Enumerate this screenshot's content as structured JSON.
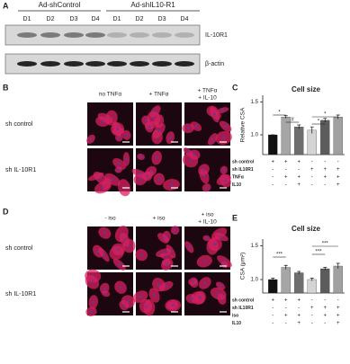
{
  "panel_a": {
    "label": "A",
    "groups": [
      "Ad-shControl",
      "Ad-shIL10-R1"
    ],
    "lanes": [
      "D1",
      "D2",
      "D3",
      "D4",
      "D1",
      "D2",
      "D3",
      "D4"
    ],
    "blots": [
      "IL-10R1",
      "β-actin"
    ]
  },
  "panel_b": {
    "label": "B",
    "columns": [
      [
        "no TNFα"
      ],
      [
        "+ TNFα"
      ],
      [
        "+ TNFα",
        "+ IL-10"
      ]
    ],
    "rows": [
      "sh control",
      "sh IL-10R1"
    ]
  },
  "panel_d": {
    "label": "D",
    "columns": [
      [
        "- iso"
      ],
      [
        "+ iso"
      ],
      [
        "+ iso",
        "+ IL-10"
      ]
    ],
    "rows": [
      "sh control",
      "sh IL-10R1"
    ]
  },
  "chart_data": [
    {
      "type": "bar",
      "panel_label": "C",
      "title": "Cell size",
      "y_label": "Relative CSA",
      "values": [
        1.0,
        1.27,
        1.12,
        1.07,
        1.22,
        1.27
      ],
      "errors": [
        0.0,
        0.02,
        0.03,
        0.05,
        0.03,
        0.03
      ],
      "colors": [
        "#111111",
        "#a6a6a6",
        "#6e6e6e",
        "#d4d4d4",
        "#5c5c5c",
        "#a0a0a0"
      ],
      "ylim": [
        0.7,
        1.6
      ],
      "yticks": [
        {
          "value": 1.0,
          "label": "1.0"
        },
        {
          "value": 1.5,
          "label": "1.5"
        }
      ],
      "annotations": [
        "*",
        "#",
        "*",
        "*"
      ],
      "conditions": {
        "rows": [
          "sh control",
          "sh IL10R1",
          "TNFα",
          "IL10"
        ],
        "cells": [
          [
            "+",
            "+",
            "+",
            "-",
            "-",
            "-"
          ],
          [
            "-",
            "-",
            "-",
            "+",
            "+",
            "+"
          ],
          [
            "-",
            "+",
            "+",
            "-",
            "+",
            "+"
          ],
          [
            "-",
            "-",
            "+",
            "-",
            "-",
            "+"
          ]
        ]
      }
    },
    {
      "type": "bar",
      "panel_label": "E",
      "title": "Cell size",
      "y_label": "CSA (μm²)",
      "values": [
        1.0,
        1.18,
        1.1,
        1.0,
        1.16,
        1.2
      ],
      "errors": [
        0.02,
        0.03,
        0.02,
        0.02,
        0.02,
        0.04
      ],
      "colors": [
        "#111111",
        "#a6a6a6",
        "#6e6e6e",
        "#d4d4d4",
        "#5c5c5c",
        "#a0a0a0"
      ],
      "ylim": [
        0.8,
        1.6
      ],
      "yticks": [
        {
          "value": 1.0,
          "label": "1.0"
        },
        {
          "value": 1.5,
          "label": "1.5"
        }
      ],
      "annotations": [
        "***",
        "***",
        "***"
      ],
      "conditions": {
        "rows": [
          "sh control",
          "sh IL10R1",
          "iso",
          "IL10"
        ],
        "cells": [
          [
            "+",
            "+",
            "+",
            "-",
            "-",
            "-"
          ],
          [
            "-",
            "-",
            "-",
            "+",
            "+",
            "+"
          ],
          [
            "-",
            "+",
            "+",
            "-",
            "+",
            "+"
          ],
          [
            "-",
            "-",
            "+",
            "-",
            "-",
            "+"
          ]
        ]
      }
    }
  ]
}
